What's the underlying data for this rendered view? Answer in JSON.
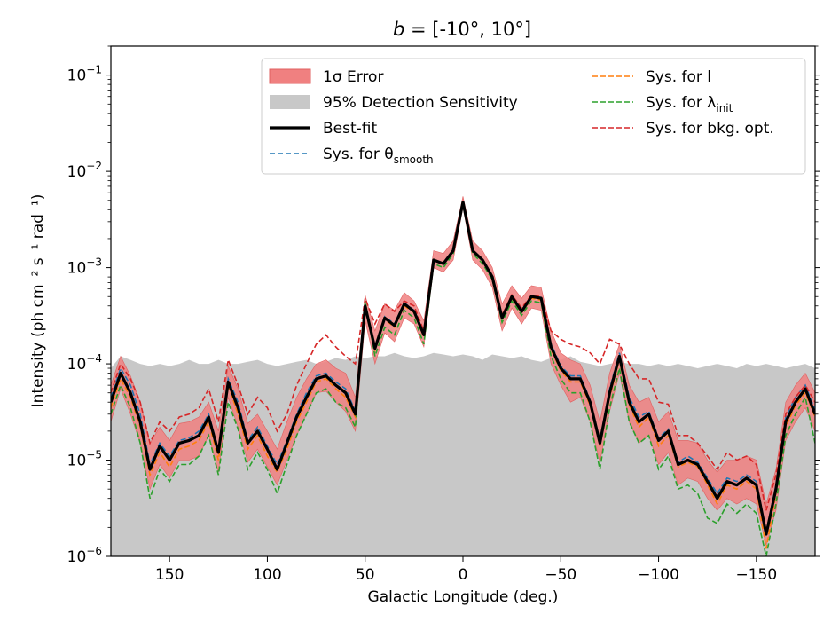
{
  "chart_data": {
    "type": "line",
    "title_prefix": "b",
    "title": "= [-10°, 10°]",
    "xlabel": "Galactic Longitude (deg.)",
    "ylabel": "Intensity (ph cm⁻² s⁻¹ rad⁻¹)",
    "xlim": [
      180,
      -180
    ],
    "ylim": [
      1e-06,
      0.2
    ],
    "yscale": "log",
    "x_ticks": [
      150,
      100,
      50,
      0,
      -50,
      -100,
      -150
    ],
    "x_tick_labels": [
      "150",
      "100",
      "50",
      "0",
      "−50",
      "−100",
      "−150"
    ],
    "y_ticks": [
      1e-06,
      1e-05,
      0.0001,
      0.001,
      0.01,
      0.1
    ],
    "y_tick_labels": [
      {
        "base": "10",
        "exp": "−6"
      },
      {
        "base": "10",
        "exp": "−5"
      },
      {
        "base": "10",
        "exp": "−4"
      },
      {
        "base": "10",
        "exp": "−3"
      },
      {
        "base": "10",
        "exp": "−2"
      },
      {
        "base": "10",
        "exp": "−1"
      }
    ],
    "legend_position": "top",
    "legend": [
      {
        "key": "error",
        "label": "1σ Error",
        "kind": "patch",
        "color": "#f08080"
      },
      {
        "key": "sensitivity",
        "label": "95% Detection Sensitivity",
        "kind": "patch",
        "color": "#c8c8c8"
      },
      {
        "key": "best",
        "label": "Best-fit",
        "kind": "line",
        "color": "#000000"
      },
      {
        "key": "sys_theta",
        "label": "Sys. for θ",
        "sub": "smooth",
        "kind": "dashed",
        "color": "#1f77b4"
      },
      {
        "key": "sys_l",
        "label": "Sys. for l",
        "kind": "dashed",
        "color": "#ff7f0e"
      },
      {
        "key": "sys_lambda",
        "label": "Sys. for λ",
        "sub": "init",
        "kind": "dashed",
        "color": "#2ca02c"
      },
      {
        "key": "sys_bkg",
        "label": "Sys. for bkg. opt.",
        "kind": "dashed",
        "color": "#d62728"
      }
    ],
    "x": [
      180,
      175,
      170,
      165,
      160,
      155,
      150,
      145,
      140,
      135,
      130,
      125,
      120,
      115,
      110,
      105,
      100,
      95,
      90,
      85,
      80,
      75,
      70,
      65,
      60,
      55,
      50,
      45,
      40,
      35,
      30,
      25,
      20,
      15,
      10,
      5,
      0,
      -5,
      -10,
      -15,
      -20,
      -25,
      -30,
      -35,
      -40,
      -45,
      -50,
      -55,
      -60,
      -65,
      -70,
      -75,
      -80,
      -85,
      -90,
      -95,
      -100,
      -105,
      -110,
      -115,
      -120,
      -125,
      -130,
      -135,
      -140,
      -145,
      -150,
      -155,
      -160,
      -165,
      -170,
      -175,
      -180
    ],
    "series": [
      {
        "name": "Best-fit",
        "values": [
          4e-05,
          8e-05,
          5e-05,
          2.5e-05,
          8e-06,
          1.4e-05,
          1e-05,
          1.5e-05,
          1.6e-05,
          1.8e-05,
          2.8e-05,
          1.2e-05,
          6.5e-05,
          3.5e-05,
          1.5e-05,
          2e-05,
          1.3e-05,
          8e-06,
          1.5e-05,
          2.8e-05,
          4.5e-05,
          7e-05,
          7.5e-05,
          6e-05,
          5e-05,
          3e-05,
          0.0004,
          0.000145,
          0.0003,
          0.00025,
          0.00042,
          0.00035,
          0.0002,
          0.0012,
          0.0011,
          0.0015,
          0.0048,
          0.0015,
          0.0012,
          0.0008,
          0.0003,
          0.0005,
          0.00035,
          0.0005,
          0.00048,
          0.00015,
          9e-05,
          7e-05,
          7e-05,
          4e-05,
          1.5e-05,
          5e-05,
          0.00012,
          4e-05,
          2.5e-05,
          3e-05,
          1.6e-05,
          2e-05,
          9e-06,
          1e-05,
          9e-06,
          6e-06,
          4e-06,
          6e-06,
          5.5e-06,
          6.5e-06,
          5.5e-06,
          1.7e-06,
          5e-06,
          2.5e-05,
          4e-05,
          5.5e-05,
          3e-05
        ]
      },
      {
        "name": "1σ Error upper",
        "values": [
          6e-05,
          0.00012,
          7.5e-05,
          4e-05,
          1.5e-05,
          2.2e-05,
          1.6e-05,
          2.4e-05,
          2.5e-05,
          2.8e-05,
          4e-05,
          2e-05,
          9.5e-05,
          5.5e-05,
          2.4e-05,
          3e-05,
          2e-05,
          1.3e-05,
          2.5e-05,
          4.5e-05,
          7e-05,
          0.0001,
          0.00011,
          9e-05,
          8e-05,
          4.5e-05,
          0.00052,
          0.00022,
          0.00042,
          0.00036,
          0.00055,
          0.00045,
          0.00028,
          0.0015,
          0.0014,
          0.0019,
          0.0055,
          0.0019,
          0.0015,
          0.001,
          0.00042,
          0.00065,
          0.00048,
          0.00065,
          0.00062,
          0.00022,
          0.00013,
          0.00011,
          0.0001,
          6e-05,
          2.5e-05,
          8e-05,
          0.00016,
          6e-05,
          4e-05,
          4.5e-05,
          2.5e-05,
          3.2e-05,
          1.6e-05,
          1.6e-05,
          1.5e-05,
          1e-05,
          7.5e-06,
          1e-05,
          1e-05,
          1.1e-05,
          1e-05,
          3.5e-06,
          8e-06,
          4e-05,
          6e-05,
          8e-05,
          5e-05
        ]
      },
      {
        "name": "1σ Error lower",
        "values": [
          2.5e-05,
          5.5e-05,
          3e-05,
          1.5e-05,
          5e-06,
          9e-06,
          6.5e-06,
          1e-05,
          1e-05,
          1.1e-05,
          1.8e-05,
          7.5e-06,
          4.5e-05,
          2.2e-05,
          9.5e-06,
          1.3e-05,
          8.5e-06,
          5.5e-06,
          1e-05,
          1.8e-05,
          3e-05,
          5e-05,
          5.2e-05,
          4e-05,
          3.2e-05,
          2e-05,
          0.00028,
          0.0001,
          0.00021,
          0.00017,
          0.0003,
          0.00026,
          0.00015,
          0.001,
          0.0009,
          0.0012,
          0.0042,
          0.0012,
          0.00095,
          0.00062,
          0.00022,
          0.00038,
          0.00026,
          0.00038,
          0.00036,
          0.0001,
          6e-05,
          4e-05,
          4.5e-05,
          2.5e-05,
          9.5e-06,
          3.2e-05,
          8e-05,
          2.5e-05,
          1.5e-05,
          1.8e-05,
          9e-06,
          1.2e-05,
          5.5e-06,
          6.5e-06,
          6e-06,
          4e-06,
          3e-06,
          4e-06,
          3.5e-06,
          4e-06,
          3.5e-06,
          1.3e-06,
          3e-06,
          1.6e-05,
          2.5e-05,
          3.5e-05,
          2e-05
        ]
      },
      {
        "name": "95% Detection Sensitivity",
        "values": [
          9e-05,
          0.00012,
          0.00011,
          0.0001,
          9.5e-05,
          0.0001,
          9.5e-05,
          0.0001,
          0.00011,
          0.0001,
          0.0001,
          0.00011,
          0.0001,
          0.0001,
          0.000105,
          0.00011,
          0.0001,
          9.5e-05,
          0.0001,
          0.000105,
          0.00011,
          0.0001,
          0.000105,
          0.000115,
          0.00011,
          0.00012,
          0.000115,
          0.00012,
          0.00012,
          0.00013,
          0.00012,
          0.000115,
          0.00012,
          0.00013,
          0.000125,
          0.00012,
          0.000125,
          0.00012,
          0.00011,
          0.000125,
          0.00012,
          0.000115,
          0.00012,
          0.00011,
          0.000105,
          0.000115,
          0.00011,
          0.00012,
          0.000105,
          0.0001,
          9.5e-05,
          0.0001,
          0.000105,
          0.0001,
          0.0001,
          9.5e-05,
          0.0001,
          9.5e-05,
          0.0001,
          9.5e-05,
          9e-05,
          9.5e-05,
          0.0001,
          9.5e-05,
          9e-05,
          0.0001,
          9.5e-05,
          0.0001,
          9.5e-05,
          9e-05,
          9.5e-05,
          0.0001,
          9e-05
        ]
      },
      {
        "name": "Sys. for θsmooth",
        "values": [
          4.5e-05,
          9e-05,
          6e-05,
          3e-05,
          9e-06,
          1.5e-05,
          1.1e-05,
          1.6e-05,
          1.7e-05,
          2e-05,
          3e-05,
          1.3e-05,
          7e-05,
          4e-05,
          1.6e-05,
          2.2e-05,
          1.4e-05,
          9e-06,
          1.6e-05,
          3e-05,
          5e-05,
          7.5e-05,
          8e-05,
          6.5e-05,
          5.5e-05,
          3.2e-05,
          0.00042,
          0.00015,
          0.00031,
          0.00026,
          0.00043,
          0.00036,
          0.00021,
          0.0012,
          0.0011,
          0.0015,
          0.0048,
          0.0015,
          0.0012,
          0.0008,
          0.00031,
          0.00051,
          0.00036,
          0.00051,
          0.00049,
          0.00016,
          9.5e-05,
          7.5e-05,
          7.5e-05,
          4.2e-05,
          1.6e-05,
          5.5e-05,
          0.00013,
          4.5e-05,
          2.8e-05,
          3.2e-05,
          1.7e-05,
          2.1e-05,
          9.5e-06,
          1.1e-05,
          9.5e-06,
          6.5e-06,
          4.5e-06,
          6.5e-06,
          6e-06,
          7e-06,
          6e-06,
          1.8e-06,
          5.5e-06,
          2.8e-05,
          4.5e-05,
          6e-05,
          3.3e-05
        ]
      },
      {
        "name": "Sys. for l",
        "values": [
          3.5e-05,
          7e-05,
          4.5e-05,
          2.2e-05,
          7e-06,
          1.2e-05,
          8.5e-06,
          1.3e-05,
          1.4e-05,
          1.6e-05,
          2.5e-05,
          1e-05,
          6e-05,
          3e-05,
          1.3e-05,
          1.8e-05,
          1.1e-05,
          7.5e-06,
          1.3e-05,
          2.5e-05,
          4e-05,
          6.5e-05,
          7e-05,
          5.5e-05,
          4.5e-05,
          2.8e-05,
          0.00038,
          0.00014,
          0.00029,
          0.00024,
          0.0004,
          0.00034,
          0.00019,
          0.0012,
          0.0011,
          0.0015,
          0.0048,
          0.0015,
          0.0012,
          0.0008,
          0.00029,
          0.00048,
          0.00034,
          0.00048,
          0.00046,
          0.00014,
          8.5e-05,
          6.5e-05,
          6.5e-05,
          3.7e-05,
          1.4e-05,
          4.5e-05,
          0.00011,
          3.7e-05,
          2.2e-05,
          2.8e-05,
          1.4e-05,
          1.8e-05,
          8.5e-06,
          9.5e-06,
          8.5e-06,
          5.5e-06,
          3.5e-06,
          5.5e-06,
          5e-06,
          6e-06,
          5e-06,
          1.2e-06,
          4.5e-06,
          2.2e-05,
          3.7e-05,
          5e-05,
          2.8e-05
        ]
      },
      {
        "name": "Sys. for λinit",
        "values": [
          3e-05,
          6e-05,
          3.5e-05,
          1.5e-05,
          4e-06,
          8e-06,
          6e-06,
          9e-06,
          9e-06,
          1.1e-05,
          1.8e-05,
          7e-06,
          4e-05,
          2.1e-05,
          8e-06,
          1.2e-05,
          8e-06,
          4.5e-06,
          9e-06,
          1.8e-05,
          3e-05,
          5e-05,
          5.5e-05,
          4e-05,
          3.5e-05,
          2.2e-05,
          0.00045,
          0.00012,
          0.00024,
          0.0002,
          0.00036,
          0.0003,
          0.00016,
          0.0011,
          0.001,
          0.0014,
          0.0046,
          0.0014,
          0.0011,
          0.00075,
          0.00027,
          0.00045,
          0.00032,
          0.00045,
          0.00043,
          0.00012,
          7e-05,
          5e-05,
          5e-05,
          2.5e-05,
          8e-06,
          3.5e-05,
          9e-05,
          2.5e-05,
          1.5e-05,
          1.8e-05,
          8e-06,
          1.1e-05,
          5e-06,
          5.5e-06,
          4.5e-06,
          2.5e-06,
          2.2e-06,
          3.5e-06,
          2.8e-06,
          3.5e-06,
          2.8e-06,
          1e-06,
          3.5e-06,
          1.8e-05,
          3e-05,
          4.5e-05,
          1.5e-05
        ]
      },
      {
        "name": "Sys. for bkg. opt.",
        "values": [
          5e-05,
          0.0001,
          7e-05,
          4e-05,
          1.5e-05,
          2.5e-05,
          2e-05,
          2.8e-05,
          3e-05,
          3.5e-05,
          5.5e-05,
          2.5e-05,
          0.00011,
          6e-05,
          3e-05,
          4.5e-05,
          3.5e-05,
          2e-05,
          3e-05,
          6e-05,
          0.0001,
          0.00016,
          0.0002,
          0.00015,
          0.00012,
          0.0001,
          0.00048,
          0.00026,
          0.00042,
          0.00035,
          0.00045,
          0.0004,
          0.00022,
          0.0012,
          0.0011,
          0.0015,
          0.0048,
          0.0015,
          0.0012,
          0.0008,
          0.00032,
          0.00052,
          0.00038,
          0.00052,
          0.0005,
          0.00022,
          0.00018,
          0.00016,
          0.00015,
          0.00013,
          0.0001,
          0.00018,
          0.00016,
          0.0001,
          7e-05,
          7e-05,
          4e-05,
          3.8e-05,
          1.8e-05,
          1.8e-05,
          1.5e-05,
          1.1e-05,
          8e-06,
          1.2e-05,
          1e-05,
          1.1e-05,
          9e-06,
          3e-06,
          7e-06,
          3e-05,
          4.5e-05,
          6e-05,
          4e-05
        ]
      }
    ]
  }
}
